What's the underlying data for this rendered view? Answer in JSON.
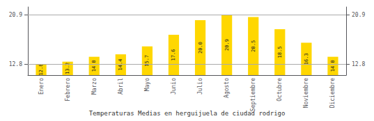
{
  "chart_data": {
    "type": "bar",
    "title": "Temperaturas Medias en herguijuela de ciudad rodrigo",
    "categories": [
      "Enero",
      "Febrero",
      "Marzo",
      "Abril",
      "Mayo",
      "Junio",
      "Julio",
      "Agosto",
      "Septiembre",
      "Octubre",
      "Noviembre",
      "Diciembre"
    ],
    "values": [
      12.8,
      13.2,
      14.0,
      14.4,
      15.7,
      17.6,
      20.0,
      20.9,
      20.5,
      18.5,
      16.3,
      14.0
    ],
    "value_labels": [
      "12.8",
      "13.2",
      "14.0",
      "14.4",
      "15.7",
      "17.6",
      "20.0",
      "20.9",
      "20.5",
      "18.5",
      "16.3",
      "14.0"
    ],
    "color": "#FFD700",
    "ylim": [
      11.0,
      22.154
    ],
    "yticks": [
      12.8,
      20.9
    ],
    "grid": true,
    "data_labels": true
  }
}
